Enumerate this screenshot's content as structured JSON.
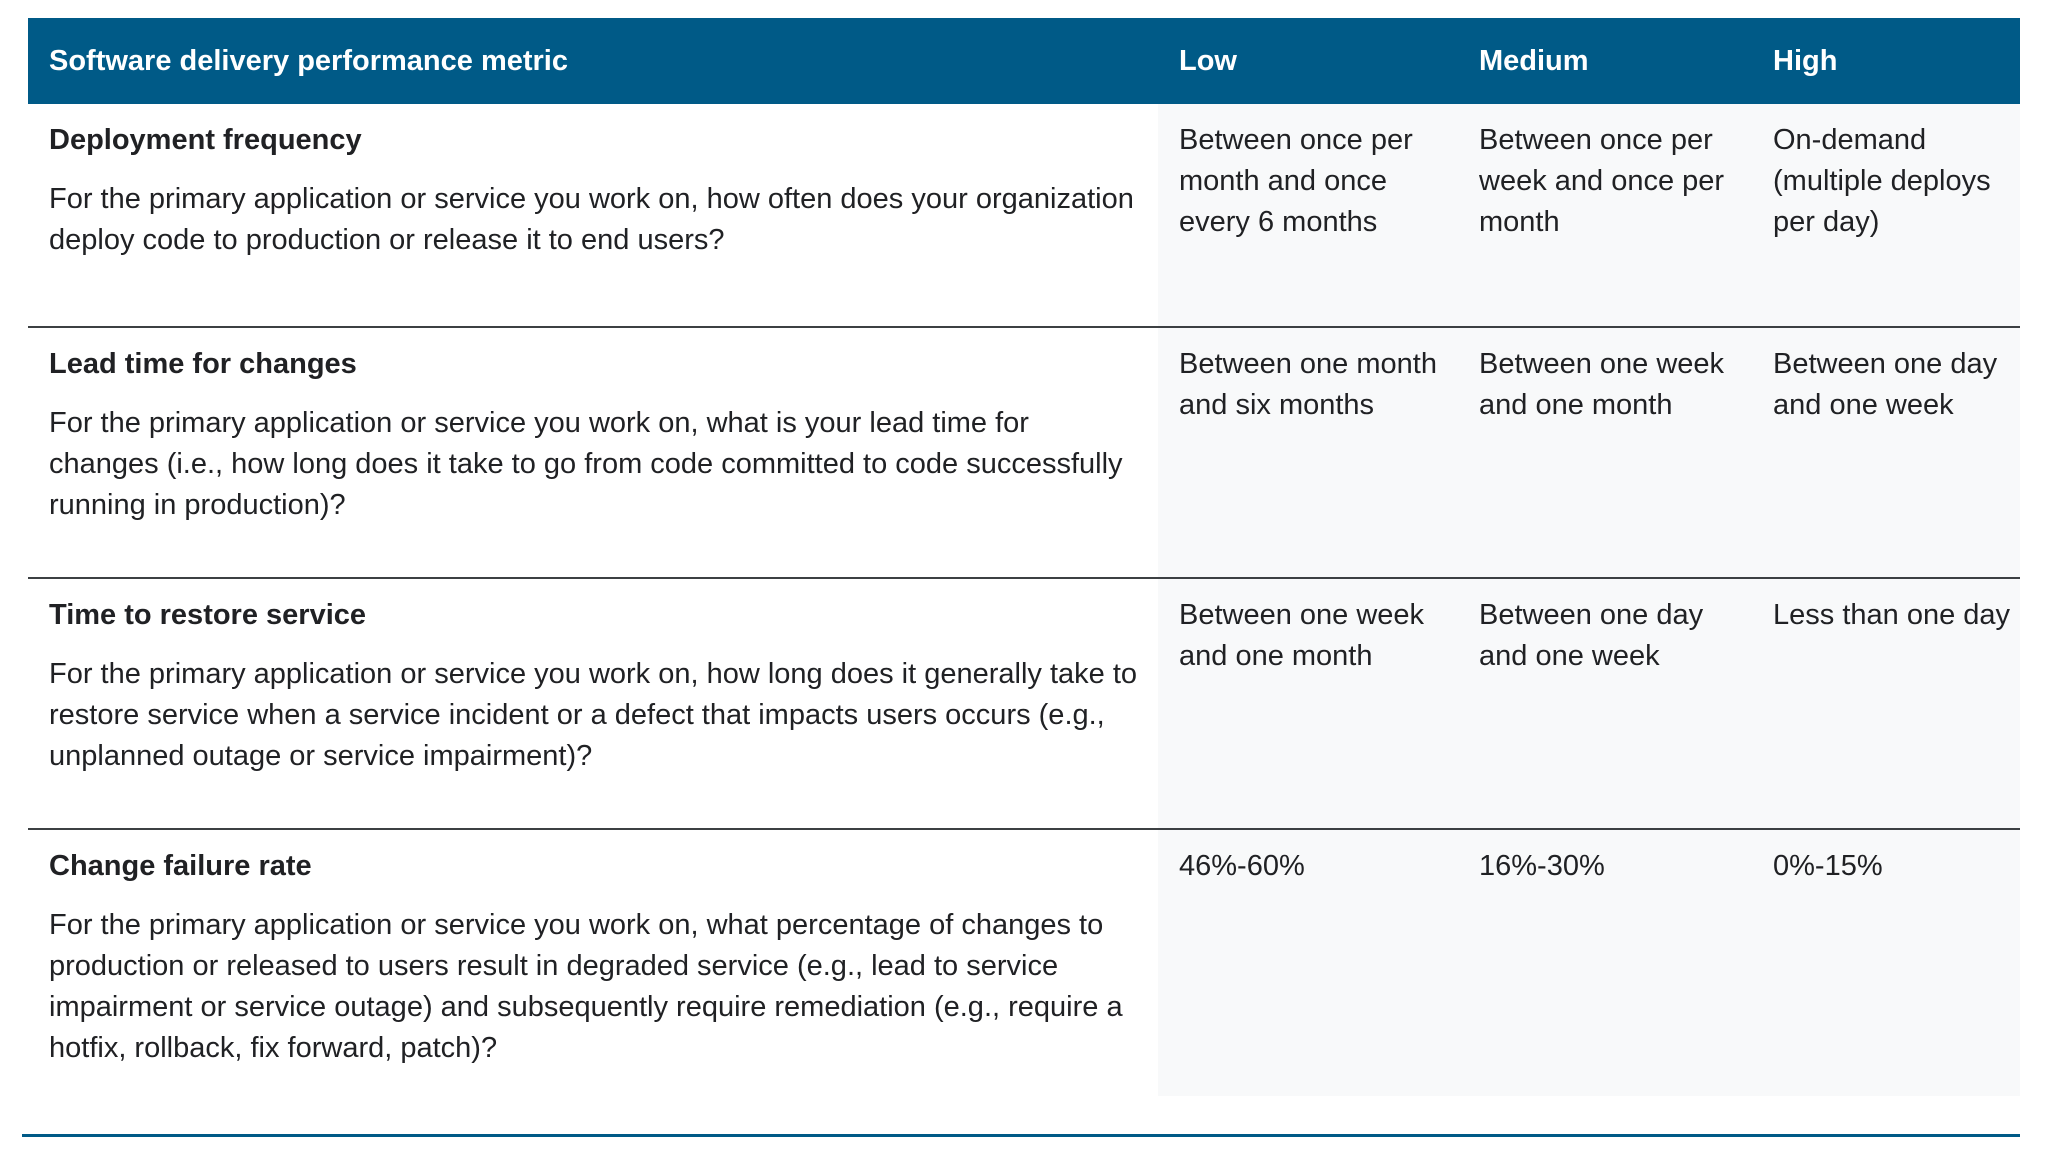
{
  "header": {
    "metric": "Software delivery performance metric",
    "low": "Low",
    "medium": "Medium",
    "high": "High"
  },
  "rows": [
    {
      "title": "Deployment frequency",
      "description": "For the primary application or service you work on, how often does your organization deploy code to production or release it to end users?",
      "low": "Between once per month and once every 6 months",
      "medium": "Between once per week and once per month",
      "high": "On-demand (multiple deploys per day)"
    },
    {
      "title": "Lead time for changes",
      "description": "For the primary application or service you work on, what is your lead time for changes (i.e., how long does it take to go from code committed to code successfully running in production)?",
      "low": "Between one month and six months",
      "medium": "Between one week and one month",
      "high": "Between one day and one week"
    },
    {
      "title": "Time to restore service",
      "description": "For the primary application or service you work on, how long does it generally take to restore service when a service incident or a defect that impacts users occurs (e.g., unplanned outage or service impairment)?",
      "low": "Between one week and one month",
      "medium": "Between one day and one week",
      "high": "Less than one day"
    },
    {
      "title": "Change failure rate",
      "description": "For the primary application or service you work on, what percentage of changes to production or released to users result in degraded service (e.g., lead to service impairment or service outage) and subsequently require remediation (e.g., require a hotfix, rollback, fix forward, patch)?",
      "low": "46%-60%",
      "medium": "16%-30%",
      "high": "0%-15%"
    }
  ],
  "colors": {
    "header_bg": "#005a87",
    "header_text": "#ffffff",
    "level_cell_bg": "#f8f9fa",
    "row_divider": "#3c4043"
  }
}
